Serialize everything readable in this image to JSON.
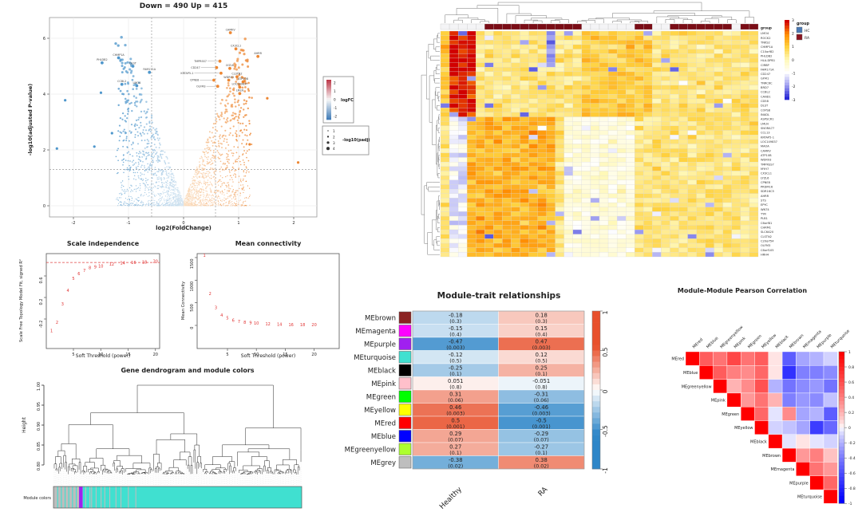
{
  "figure": {
    "background": "#ffffff"
  },
  "colors": {
    "up_pale": "#fbe0c3",
    "up_strong": "#ed8733",
    "down_pale": "#d6e6f2",
    "down_strong": "#4f97cc",
    "ra_annotation": "#7a0d16",
    "hc_annotation": "#f4f4f6",
    "hc_legend": "#4a7ab5",
    "ra_legend": "#8b1520",
    "dash_grey": "#9a9a9a",
    "red_series": "#e03030"
  },
  "chart_data": [
    {
      "id": "volcano",
      "type": "scatter",
      "title": "Down = 490 Up = 415",
      "xlabel": "log2(FoldChange)",
      "ylabel": "-log10(adjusted P-value)",
      "x_ticks": [
        -2,
        -1,
        0,
        1,
        2
      ],
      "y_ticks": [
        0,
        2,
        4,
        6
      ],
      "xlim": [
        -2.45,
        2.45
      ],
      "ylim": [
        -0.2,
        6.6
      ],
      "vlines": [
        -0.58,
        0.58
      ],
      "hline": 1.3,
      "n_points": 2600,
      "seed": 5,
      "legend_colorbar": {
        "label": "logFC",
        "ticks": [
          2,
          1,
          0,
          -1,
          -2
        ]
      },
      "legend_size": {
        "label": "-log10(padj)",
        "values": [
          1,
          2,
          3,
          4
        ]
      },
      "up_genes": [
        {
          "g": "CAMKV",
          "x": 0.85,
          "y": 6.2
        },
        {
          "g": "CX3CL1",
          "x": 0.95,
          "y": 5.62
        },
        {
          "g": "AHRR",
          "x": 1.35,
          "y": 5.35
        },
        {
          "g": "TMPRSS7",
          "x": 0.66,
          "y": 5.18,
          "lx": 0.42
        },
        {
          "g": "CD247",
          "x": 0.6,
          "y": 4.95,
          "lx": 0.3
        },
        {
          "g": "LYZL6",
          "x": 0.84,
          "y": 4.92
        },
        {
          "g": "KRTAP5-1",
          "x": 0.68,
          "y": 4.75,
          "lx": 0.18
        },
        {
          "g": "CLSTN2",
          "x": 0.97,
          "y": 4.62
        },
        {
          "g": "CPNE8",
          "x": 0.55,
          "y": 4.5,
          "lx": 0.28
        },
        {
          "g": "WDR93",
          "x": 0.82,
          "y": 4.5
        },
        {
          "g": "ATP10B",
          "x": 1.08,
          "y": 4.44
        },
        {
          "g": "OLFM3",
          "x": 0.62,
          "y": 4.28,
          "lx": 0.4
        },
        {
          "g": "LOC149837",
          "x": 1.02,
          "y": 4.25
        },
        {
          "g": "LMLN",
          "x": 1.02,
          "y": 4.02
        }
      ],
      "down_genes": [
        {
          "g": "CHMP1A",
          "x": -1.18,
          "y": 5.3
        },
        {
          "g": "PHLDB2",
          "x": -1.48,
          "y": 5.12
        },
        {
          "g": "DLST",
          "x": -0.92,
          "y": 5.0
        },
        {
          "g": "FAM171A",
          "x": -0.62,
          "y": 4.78
        },
        {
          "g": "CCBL2",
          "x": -1.12,
          "y": 4.35
        },
        {
          "g": "LMO4",
          "x": -0.85,
          "y": 4.3
        }
      ],
      "extra_points": [
        {
          "x": -2.15,
          "y": 3.78
        },
        {
          "x": -2.3,
          "y": 2.05
        },
        {
          "x": -1.62,
          "y": 2.12
        },
        {
          "x": -1.5,
          "y": 4.05
        },
        {
          "x": -1.3,
          "y": 2.6
        },
        {
          "x": 2.08,
          "y": 1.55
        },
        {
          "x": 1.52,
          "y": 3.85
        },
        {
          "x": 1.2,
          "y": 2.2
        }
      ]
    },
    {
      "id": "expression-heatmap",
      "type": "heatmap",
      "rows": 50,
      "cols": 36,
      "seed": 911,
      "colorbar_ticks": [
        3,
        2,
        1,
        0,
        -1,
        -2,
        -3
      ],
      "group_row_label": "group",
      "group_legend": {
        "title": "group",
        "items": [
          {
            "label": "HC",
            "color": "#4a7ab5"
          },
          {
            "label": "RA",
            "color": "#8b1520"
          }
        ]
      },
      "col_groups": [
        "HC",
        "HC",
        "HC",
        "HC",
        "HC",
        "RA",
        "RA",
        "RA",
        "RA",
        "RA",
        "RA",
        "RA",
        "RA",
        "RA",
        "RA",
        "RA",
        "HC",
        "HC",
        "HC",
        "HC",
        "HC",
        "HC",
        "RA",
        "RA",
        "HC",
        "HC",
        "RA",
        "RA",
        "RA",
        "RA",
        "RA",
        "RA",
        "RA",
        "HC",
        "RA",
        "RA"
      ],
      "row_labels": [
        "LMO4",
        "ROCK2",
        "TNKS2",
        "CHMP1A",
        "C10orf82",
        "PHLDB2",
        "HLA-DPB1",
        "CIRBP",
        "FAM171A",
        "CD247",
        "GFM1",
        "TNRC6C",
        "BRD7",
        "CCBL2",
        "CAND1",
        "CD58",
        "DLST",
        "COPS8",
        "INADL",
        "ASPSCR1",
        "LMLN",
        "SNORA77",
        "CCL13",
        "KRTAP5-1",
        "LOC149837",
        "MAOA",
        "CAMKV",
        "ATP10B",
        "WDR93",
        "TMPRSS7",
        "MYH7",
        "CX3CL1",
        "LYZL6",
        "CPNE8",
        "PRDM16",
        "SDR16C5",
        "AHRR",
        "STS",
        "EPYC",
        "WNT4",
        "TYR",
        "PLB1",
        "C6orf81",
        "CHRM1",
        "SLC6A20",
        "CLSTN2",
        "C20orf54",
        "OLFM3",
        "C6orf105",
        "HRH4"
      ]
    },
    {
      "id": "scale-independence",
      "type": "scatter",
      "title": "Scale independence",
      "xlabel": "Soft Threshold (power)",
      "ylabel": "Scale Free Topology Model Fit, signed R²",
      "x_ticks": [
        5,
        10,
        15,
        20
      ],
      "y_ticks": [
        -0.2,
        0.2,
        0.6
      ],
      "powers": [
        1,
        2,
        3,
        4,
        5,
        6,
        7,
        8,
        9,
        10,
        12,
        14,
        16,
        18,
        20
      ],
      "r2": [
        -0.42,
        -0.26,
        0.08,
        0.33,
        0.55,
        0.64,
        0.7,
        0.75,
        0.77,
        0.78,
        0.82,
        0.84,
        0.85,
        0.86,
        0.87
      ],
      "hline": 0.85
    },
    {
      "id": "mean-connectivity",
      "type": "scatter",
      "title": "Mean connectivity",
      "xlabel": "Soft Threshold (power)",
      "ylabel": "Mean Connectivity",
      "x_ticks": [
        5,
        10,
        15,
        20
      ],
      "y_ticks": [
        0,
        500,
        1000,
        1500
      ],
      "powers": [
        1,
        2,
        3,
        4,
        5,
        6,
        7,
        8,
        9,
        10,
        12,
        14,
        16,
        18,
        20
      ],
      "connectivity": [
        1550,
        700,
        390,
        230,
        160,
        110,
        85,
        65,
        55,
        45,
        30,
        22,
        16,
        12,
        10
      ]
    },
    {
      "id": "gene-dendrogram",
      "type": "dendrogram",
      "title": "Gene dendrogram and module colors",
      "ylabel": "Height",
      "y_ticks": [
        1.0,
        0.95,
        0.9,
        0.85,
        0.8
      ],
      "bar_label": "Module colors",
      "seed": 42,
      "leaves": 160,
      "segments": [
        {
          "color": "#bdbdbd",
          "from": 0,
          "to": 0.103
        },
        {
          "color": "#a020f0",
          "from": 0.103,
          "to": 0.118
        },
        {
          "color": "#40e0d0",
          "from": 0.118,
          "to": 1
        }
      ],
      "grey_stripes": [
        0.128,
        0.145,
        0.152,
        0.17,
        0.19,
        0.205,
        0.225,
        0.25,
        0.27,
        0.3,
        0.33
      ],
      "turquoise_stripes": [
        0.015,
        0.03,
        0.045,
        0.06,
        0.075,
        0.09
      ]
    },
    {
      "id": "module-trait",
      "type": "heatmap",
      "title": "Module-trait relationships",
      "columns": [
        "Healthy",
        "RA"
      ],
      "colorbar_ticks": [
        1,
        0.5,
        0,
        -0.5,
        -1
      ],
      "rows": [
        {
          "module": "MEbrown",
          "color": "#8b2323",
          "values": [
            "-0.18",
            "0.18"
          ],
          "p": [
            "(0.3)",
            "(0.3)"
          ],
          "num": [
            -0.18,
            0.18
          ]
        },
        {
          "module": "MEmagenta",
          "color": "#ff00ff",
          "values": [
            "-0.15",
            "0.15"
          ],
          "p": [
            "(0.4)",
            "(0.4)"
          ],
          "num": [
            -0.15,
            0.15
          ]
        },
        {
          "module": "MEpurple",
          "color": "#a020f0",
          "values": [
            "-0.47",
            "0.47"
          ],
          "p": [
            "(0.003)",
            "(0.003)"
          ],
          "num": [
            -0.47,
            0.47
          ]
        },
        {
          "module": "MEturquoise",
          "color": "#40e0d0",
          "values": [
            "-0.12",
            "0.12"
          ],
          "p": [
            "(0.5)",
            "(0.5)"
          ],
          "num": [
            -0.12,
            0.12
          ]
        },
        {
          "module": "MEblack",
          "color": "#000000",
          "values": [
            "-0.25",
            "0.25"
          ],
          "p": [
            "(0.1)",
            "(0.1)"
          ],
          "num": [
            -0.25,
            0.25
          ]
        },
        {
          "module": "MEpink",
          "color": "#ffc0cb",
          "values": [
            "0.051",
            "-0.051"
          ],
          "p": [
            "(0.8)",
            "(0.8)"
          ],
          "num": [
            0.051,
            -0.051
          ]
        },
        {
          "module": "MEgreen",
          "color": "#00ff00",
          "values": [
            "0.31",
            "-0.31"
          ],
          "p": [
            "(0.06)",
            "(0.06)"
          ],
          "num": [
            0.31,
            -0.31
          ]
        },
        {
          "module": "MEyellow",
          "color": "#ffff00",
          "values": [
            "0.46",
            "-0.46"
          ],
          "p": [
            "(0.003)",
            "(0.003)"
          ],
          "num": [
            0.46,
            -0.46
          ]
        },
        {
          "module": "MEred",
          "color": "#ff0000",
          "values": [
            "0.5",
            "-0.5"
          ],
          "p": [
            "(0.001)",
            "(0.001)"
          ],
          "num": [
            0.5,
            -0.5
          ]
        },
        {
          "module": "MEblue",
          "color": "#0000ff",
          "values": [
            "0.29",
            "-0.29"
          ],
          "p": [
            "(0.07)",
            "(0.07)"
          ],
          "num": [
            0.29,
            -0.29
          ]
        },
        {
          "module": "MEgreenyellow",
          "color": "#adff2f",
          "values": [
            "0.27",
            "-0.27"
          ],
          "p": [
            "(0.1)",
            "(0.1)"
          ],
          "num": [
            0.27,
            -0.27
          ]
        },
        {
          "module": "MEgrey",
          "color": "#bebebe",
          "values": [
            "-0.38",
            "0.38"
          ],
          "p": [
            "(0.02)",
            "(0.02)"
          ],
          "num": [
            -0.38,
            0.38
          ]
        }
      ]
    },
    {
      "id": "module-module",
      "type": "heatmap",
      "title": "Module-Module Pearson Correlation",
      "colorbar_ticks": [
        1,
        0.8,
        0.6,
        0.4,
        0.2,
        0,
        -0.2,
        -0.4,
        -0.6,
        -0.8,
        -1
      ],
      "modules": [
        "MEred",
        "MEblue",
        "MEgreenyellow",
        "MEpink",
        "MEgreen",
        "MEyellow",
        "MEblack",
        "MEbrown",
        "MEmagenta",
        "MEpurple",
        "MEturquoise"
      ],
      "matrix": [
        [
          1,
          0.55,
          0.45,
          0.65,
          0.45,
          0.55,
          0.05,
          -0.55,
          -0.25,
          -0.2,
          -0.1
        ],
        [
          null,
          1,
          0.55,
          0.4,
          0.35,
          0.5,
          0.05,
          -0.75,
          -0.4,
          -0.4,
          -0.35
        ],
        [
          null,
          null,
          1,
          0.2,
          0.35,
          0.6,
          -0.2,
          -0.45,
          -0.35,
          -0.3,
          -0.45
        ],
        [
          null,
          null,
          null,
          1,
          0.3,
          0.45,
          0.2,
          -0.4,
          -0.3,
          -0.35,
          -0.15
        ],
        [
          null,
          null,
          null,
          null,
          1,
          0.5,
          -0.05,
          0.35,
          -0.25,
          -0.2,
          -0.55
        ],
        [
          null,
          null,
          null,
          null,
          null,
          1,
          -0.1,
          -0.15,
          -0.25,
          -0.7,
          -0.5
        ],
        [
          null,
          null,
          null,
          null,
          null,
          null,
          1,
          -0.05,
          0.05,
          -0.05,
          -0.1
        ],
        [
          null,
          null,
          null,
          null,
          null,
          null,
          null,
          1,
          0.3,
          0.4,
          0.15
        ],
        [
          null,
          null,
          null,
          null,
          null,
          null,
          null,
          null,
          1,
          0.45,
          0.3
        ],
        [
          null,
          null,
          null,
          null,
          null,
          null,
          null,
          null,
          null,
          1,
          0.5
        ],
        [
          null,
          null,
          null,
          null,
          null,
          null,
          null,
          null,
          null,
          null,
          1
        ]
      ]
    }
  ]
}
